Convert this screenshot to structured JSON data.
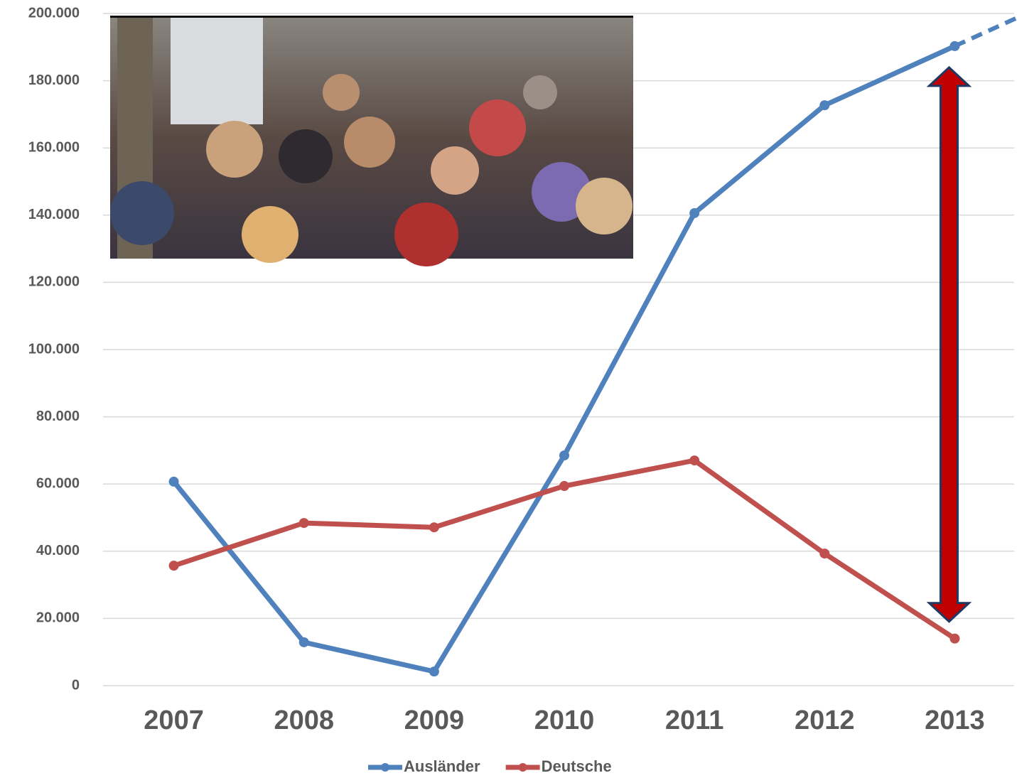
{
  "chart_data": {
    "type": "line",
    "categories": [
      "2007",
      "2008",
      "2009",
      "2010",
      "2011",
      "2012",
      "2013"
    ],
    "series": [
      {
        "name": "Ausländer",
        "color": "#4f81bd",
        "values": [
          60700,
          12900,
          4200,
          68500,
          140600,
          172700,
          190300
        ]
      },
      {
        "name": "Deutsche",
        "color": "#c0504d",
        "values": [
          35700,
          48400,
          47100,
          59400,
          67000,
          39300,
          14000
        ]
      }
    ],
    "ylim": [
      0,
      200000
    ],
    "yticks": [
      0,
      {
        "value": 20000,
        "label": "20.000"
      },
      {
        "value": 40000,
        "label": "40.000"
      },
      {
        "value": 60000,
        "label": "60.000"
      },
      {
        "value": 80000,
        "label": "80.000"
      },
      {
        "value": 100000,
        "label": "100.000"
      },
      {
        "value": 120000,
        "label": "120.000"
      },
      {
        "value": 140000,
        "label": "140.000"
      },
      {
        "value": 160000,
        "label": "160.000"
      },
      {
        "value": 180000,
        "label": "180.000"
      },
      {
        "value": 200000,
        "label": "200.000"
      }
    ],
    "grid": true,
    "legend": "bottom"
  }
}
